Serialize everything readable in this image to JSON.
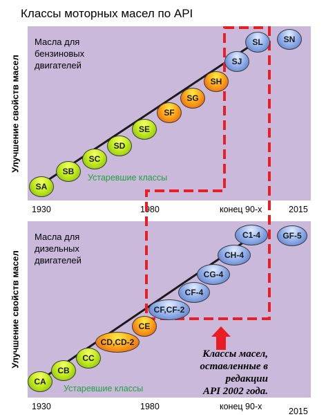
{
  "title": "Классы моторных масел по API",
  "ylabel": "Улучшение свойств масел",
  "note": [
    "Классы масел,",
    "оставленные в редакции",
    "API 2002 года."
  ],
  "colors": {
    "panel": "#cbb9dc",
    "dashed": "#ea1d24",
    "obsolete_text": "#1fa33c"
  },
  "gasoline": {
    "label": [
      "Масла для",
      "бензиновых",
      "двигателей"
    ],
    "obsolete": "Устаревшие классы",
    "ticks": [
      "1930",
      "1980",
      "конец 90-х",
      "2015"
    ],
    "classes": [
      "SA",
      "SB",
      "SC",
      "SD",
      "SE",
      "SF",
      "SG",
      "SH",
      "SJ",
      "SL"
    ],
    "current": "SN"
  },
  "diesel": {
    "label": [
      "Масла для",
      "дизельных",
      "двигателей"
    ],
    "obsolete": "Устаревшие классы",
    "ticks": [
      "1930",
      "1980",
      "конец 90-х",
      "2015"
    ],
    "classes": [
      "CA",
      "CB",
      "CC",
      "CD,CD-2",
      "CE",
      "CF,CF-2",
      "CF-4",
      "CG-4",
      "CH-4",
      "C1-4"
    ],
    "current": "GF-5"
  }
}
